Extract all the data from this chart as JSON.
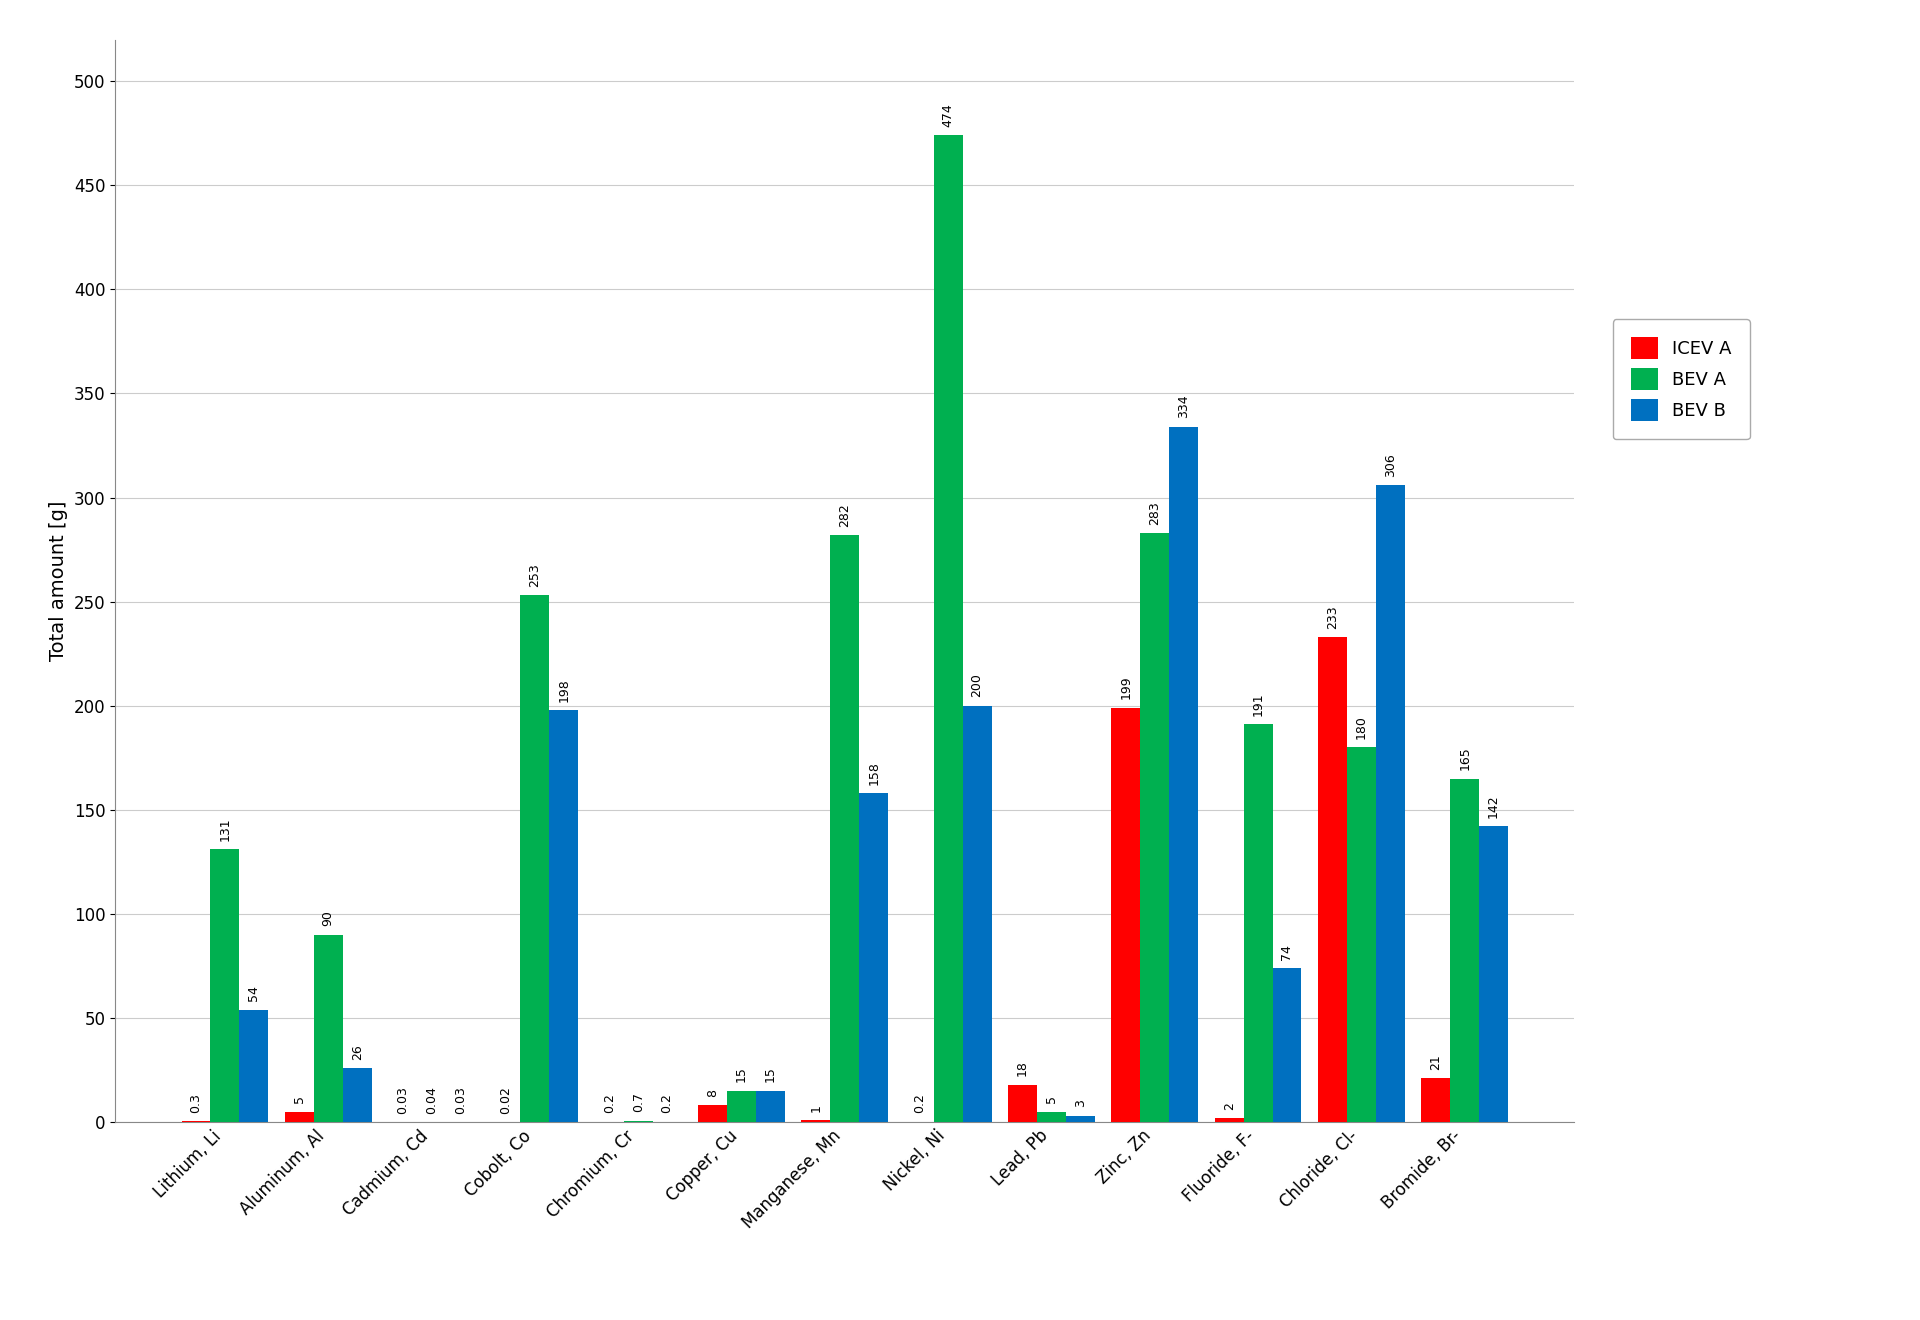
{
  "categories": [
    "Lithium, Li",
    "Aluminum, Al",
    "Cadmium, Cd",
    "Cobolt, Co",
    "Chromium, Cr",
    "Copper, Cu",
    "Manganese, Mn",
    "Nickel, Ni",
    "Lead, Pb",
    "Zinc, Zn",
    "Fluoride, F-",
    "Chloride, Cl-",
    "Bromide, Br-"
  ],
  "icev_a": [
    0.3,
    5,
    0.03,
    0.02,
    0.2,
    8,
    1,
    0.2,
    18,
    199,
    2,
    233,
    21
  ],
  "bev_a": [
    131,
    90,
    0.04,
    253,
    0.7,
    15,
    282,
    474,
    5,
    283,
    191,
    180,
    165
  ],
  "bev_b": [
    54,
    26,
    0.03,
    198,
    0.2,
    15,
    158,
    200,
    3,
    334,
    74,
    306,
    142
  ],
  "icev_a_labels": [
    "0.3",
    "5",
    "0.03",
    "0.02",
    "0.2",
    "8",
    "1",
    "0.2",
    "18",
    "199",
    "2",
    "233",
    "21"
  ],
  "bev_a_labels": [
    "131",
    "90",
    "0.04",
    "253",
    "0.7",
    "15",
    "282",
    "474",
    "5",
    "283",
    "191",
    "180",
    "165"
  ],
  "bev_b_labels": [
    "54",
    "26",
    "0.03",
    "198",
    "0.2",
    "15",
    "158",
    "200",
    "3",
    "334",
    "74",
    "306",
    "142"
  ],
  "colors": {
    "icev_a": "#FF0000",
    "bev_a": "#00B050",
    "bev_b": "#0070C0"
  },
  "ylabel": "Total amount [g]",
  "ylim": [
    0,
    520
  ],
  "yticks": [
    0,
    50,
    100,
    150,
    200,
    250,
    300,
    350,
    400,
    450,
    500
  ],
  "legend_labels": [
    "ICEV A",
    "BEV A",
    "BEV B"
  ],
  "bar_width": 0.28,
  "label_fontsize": 9,
  "tick_fontsize": 12,
  "ylabel_fontsize": 14,
  "legend_fontsize": 13,
  "background_color": "#FFFFFF",
  "grid_color": "#CCCCCC"
}
